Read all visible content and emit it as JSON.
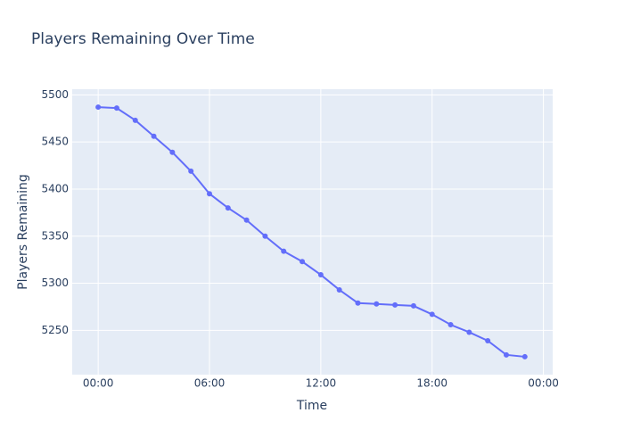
{
  "chart_data": {
    "type": "line",
    "title": "Players Remaining Over Time",
    "x_label": "Time",
    "y_label": "Players Remaining",
    "x": [
      0,
      1,
      2,
      3,
      4,
      5,
      6,
      7,
      8,
      9,
      10,
      11,
      12,
      13,
      14,
      15,
      16,
      17,
      18,
      19,
      20,
      21,
      22,
      23
    ],
    "series": [
      {
        "name": "Players Remaining",
        "color": "#636efa",
        "values": [
          5487,
          5486,
          5473,
          5456,
          5439,
          5419,
          5395,
          5380,
          5367,
          5350,
          5334,
          5323,
          5309,
          5293,
          5279,
          5278,
          5277,
          5276,
          5267,
          5256,
          5248,
          5239,
          5224,
          5222
        ]
      }
    ],
    "xlim": [
      -1.4,
      24.5
    ],
    "xticks": [
      {
        "value": 0,
        "label": "00:00"
      },
      {
        "value": 6,
        "label": "06:00"
      },
      {
        "value": 12,
        "label": "12:00"
      },
      {
        "value": 18,
        "label": "18:00"
      },
      {
        "value": 24,
        "label": "00:00"
      }
    ],
    "ylim": [
      5203,
      5506
    ],
    "yticks": [
      5250,
      5300,
      5350,
      5400,
      5450,
      5500
    ],
    "grid": true
  }
}
